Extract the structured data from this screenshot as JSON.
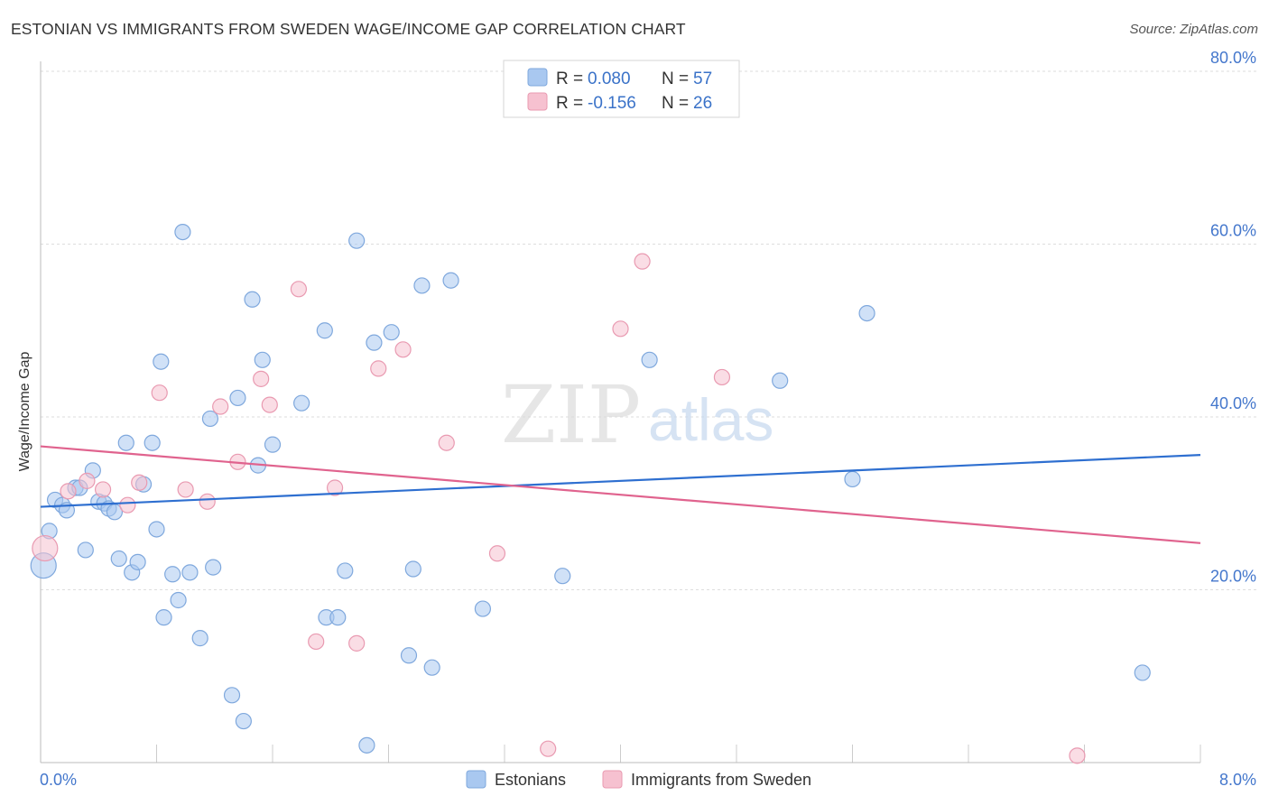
{
  "title": "ESTONIAN VS IMMIGRANTS FROM SWEDEN WAGE/INCOME GAP CORRELATION CHART",
  "source": "Source: ZipAtlas.com",
  "watermark": {
    "zip": "ZIP",
    "atlas": "atlas"
  },
  "legend": {
    "rows": [
      {
        "r_label": "R = ",
        "r_value": "0.080",
        "n_label": "N = ",
        "n_value": "57",
        "color": "#a9c8f0",
        "stroke": "#7fa8dd"
      },
      {
        "r_label": "R = ",
        "r_value": "-0.156",
        "n_label": "N = ",
        "n_value": "26",
        "color": "#f6c1d0",
        "stroke": "#e99ab1"
      }
    ]
  },
  "bottom_legend": [
    {
      "label": "Estonians",
      "color": "#a9c8f0",
      "stroke": "#7fa8dd"
    },
    {
      "label": "Immigrants from Sweden",
      "color": "#f6c1d0",
      "stroke": "#e99ab1"
    }
  ],
  "chart_data": {
    "type": "scatter",
    "title": "ESTONIAN VS IMMIGRANTS FROM SWEDEN WAGE/INCOME GAP CORRELATION CHART",
    "xlabel": "",
    "ylabel": "Wage/Income Gap",
    "xlim": [
      0,
      8
    ],
    "ylim": [
      0,
      80
    ],
    "x_tick_labels": [
      "0.0%",
      "8.0%"
    ],
    "y_tick_labels": [
      "20.0%",
      "40.0%",
      "60.0%",
      "80.0%"
    ],
    "y_ticks": [
      20,
      40,
      60,
      80
    ],
    "grid": true,
    "series": [
      {
        "name": "Estonians",
        "color": "#a9c8f0",
        "stroke": "#7fa8dd",
        "line_color": "#2e6fd0",
        "trend": {
          "x": [
            0,
            8
          ],
          "y": [
            29.6,
            35.6
          ]
        },
        "points": [
          [
            0.02,
            22.8
          ],
          [
            0.06,
            26.8
          ],
          [
            0.1,
            30.4
          ],
          [
            0.15,
            29.8
          ],
          [
            0.18,
            29.2
          ],
          [
            0.24,
            31.8
          ],
          [
            0.27,
            31.8
          ],
          [
            0.31,
            24.6
          ],
          [
            0.36,
            33.8
          ],
          [
            0.4,
            30.2
          ],
          [
            0.44,
            30.0
          ],
          [
            0.47,
            29.4
          ],
          [
            0.51,
            29.0
          ],
          [
            0.54,
            23.6
          ],
          [
            0.59,
            37.0
          ],
          [
            0.63,
            22.0
          ],
          [
            0.67,
            23.2
          ],
          [
            0.71,
            32.2
          ],
          [
            0.77,
            37.0
          ],
          [
            0.8,
            27.0
          ],
          [
            0.83,
            46.4
          ],
          [
            0.85,
            16.8
          ],
          [
            0.91,
            21.8
          ],
          [
            0.95,
            18.8
          ],
          [
            0.98,
            61.4
          ],
          [
            1.03,
            22.0
          ],
          [
            1.1,
            14.4
          ],
          [
            1.17,
            39.8
          ],
          [
            1.19,
            22.6
          ],
          [
            1.32,
            7.8
          ],
          [
            1.36,
            42.2
          ],
          [
            1.4,
            4.8
          ],
          [
            1.46,
            53.6
          ],
          [
            1.5,
            34.4
          ],
          [
            1.53,
            46.6
          ],
          [
            1.6,
            36.8
          ],
          [
            1.8,
            41.6
          ],
          [
            1.96,
            50.0
          ],
          [
            1.97,
            16.8
          ],
          [
            2.05,
            16.8
          ],
          [
            2.1,
            22.2
          ],
          [
            2.18,
            60.4
          ],
          [
            2.25,
            2.0
          ],
          [
            2.3,
            48.6
          ],
          [
            2.42,
            49.8
          ],
          [
            2.54,
            12.4
          ],
          [
            2.57,
            22.4
          ],
          [
            2.63,
            55.2
          ],
          [
            2.7,
            11.0
          ],
          [
            2.83,
            55.8
          ],
          [
            3.05,
            17.8
          ],
          [
            3.6,
            21.6
          ],
          [
            4.2,
            46.6
          ],
          [
            5.1,
            44.2
          ],
          [
            5.6,
            32.8
          ],
          [
            5.7,
            52.0
          ],
          [
            7.6,
            10.4
          ]
        ]
      },
      {
        "name": "Immigrants from Sweden",
        "color": "#f6c1d0",
        "stroke": "#e99ab1",
        "line_color": "#e0638e",
        "trend": {
          "x": [
            0,
            8
          ],
          "y": [
            36.6,
            25.4
          ]
        },
        "points": [
          [
            0.03,
            24.8
          ],
          [
            0.19,
            31.4
          ],
          [
            0.32,
            32.6
          ],
          [
            0.43,
            31.6
          ],
          [
            0.6,
            29.8
          ],
          [
            0.68,
            32.4
          ],
          [
            0.82,
            42.8
          ],
          [
            1.0,
            31.6
          ],
          [
            1.15,
            30.2
          ],
          [
            1.24,
            41.2
          ],
          [
            1.36,
            34.8
          ],
          [
            1.52,
            44.4
          ],
          [
            1.58,
            41.4
          ],
          [
            1.78,
            54.8
          ],
          [
            1.9,
            14.0
          ],
          [
            2.03,
            31.8
          ],
          [
            2.18,
            13.8
          ],
          [
            2.33,
            45.6
          ],
          [
            2.5,
            47.8
          ],
          [
            2.8,
            37.0
          ],
          [
            3.15,
            24.2
          ],
          [
            3.5,
            1.6
          ],
          [
            4.0,
            50.2
          ],
          [
            4.15,
            58.0
          ],
          [
            4.7,
            44.6
          ],
          [
            7.15,
            0.8
          ]
        ]
      }
    ]
  }
}
